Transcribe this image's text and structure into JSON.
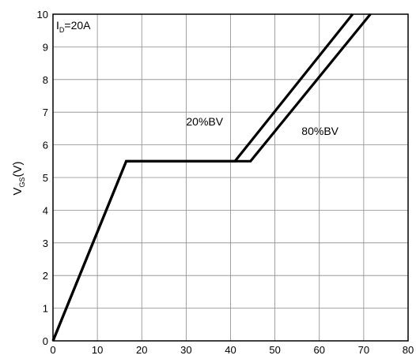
{
  "chart_data": {
    "type": "line",
    "title": "",
    "xlabel": "",
    "ylabel": {
      "main": "V",
      "sub": "GS",
      "unit": "(V)"
    },
    "xlim": [
      0,
      80
    ],
    "ylim": [
      0,
      10
    ],
    "x_ticks": [
      "0",
      "10",
      "20",
      "30",
      "40",
      "50",
      "60",
      "70",
      "80"
    ],
    "y_ticks": [
      "0",
      "1",
      "2",
      "3",
      "4",
      "5",
      "6",
      "7",
      "8",
      "9",
      "10"
    ],
    "grid": true,
    "condition": {
      "main": "I",
      "sub": "D",
      "rest": "=20A"
    },
    "series": [
      {
        "name": "20%BV",
        "x": [
          0,
          16.5,
          41,
          67.5
        ],
        "y": [
          0,
          5.5,
          5.5,
          10
        ]
      },
      {
        "name": "80%BV",
        "x": [
          0,
          16.5,
          44.5,
          71.5
        ],
        "y": [
          0,
          5.5,
          5.5,
          10
        ]
      }
    ],
    "labels": [
      {
        "text": "20%BV",
        "x": 30,
        "y": 6.6
      },
      {
        "text": "80%BV",
        "x": 56,
        "y": 6.3
      }
    ]
  }
}
